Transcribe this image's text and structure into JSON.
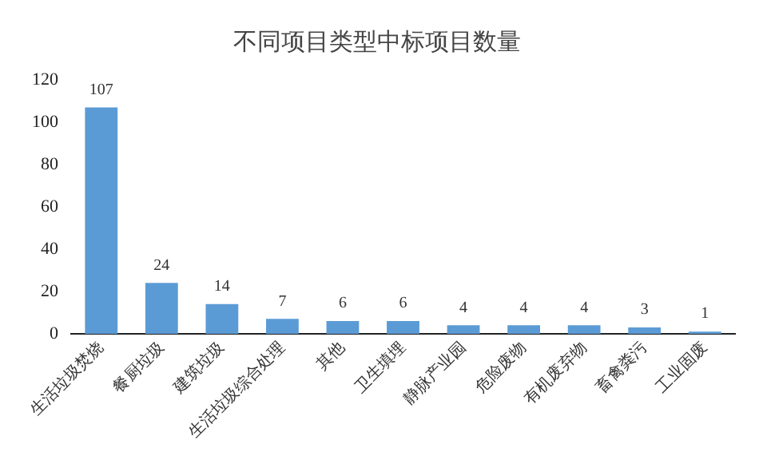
{
  "chart_data": {
    "type": "bar",
    "title": "不同项目类型中标项目数量",
    "categories": [
      "生活垃圾焚烧",
      "餐厨垃圾",
      "建筑垃圾",
      "生活垃圾综合处理",
      "其他",
      "卫生填埋",
      "静脉产业园",
      "危险废物",
      "有机废弃物",
      "畜禽粪污",
      "工业固废"
    ],
    "values": [
      107,
      24,
      14,
      7,
      6,
      6,
      4,
      4,
      4,
      3,
      1
    ],
    "color": "#5b9bd5",
    "ylim": [
      0,
      120
    ],
    "yticks": [
      0,
      20,
      40,
      60,
      80,
      100,
      120
    ],
    "grid": false,
    "legend": false,
    "data_labels": true
  }
}
